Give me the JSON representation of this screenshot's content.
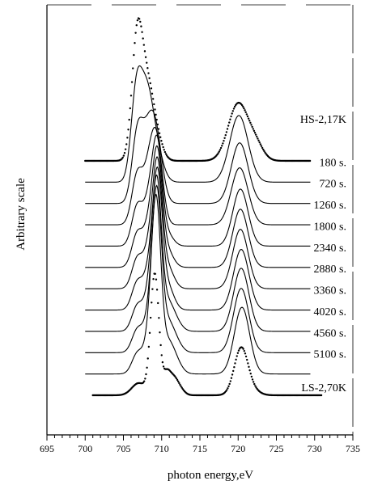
{
  "chart_data": {
    "type": "line",
    "title": "",
    "xlabel": "photon energy,eV",
    "ylabel": "Arbitrary scale",
    "xlim": [
      695,
      735
    ],
    "x_ticks": [
      695,
      700,
      705,
      710,
      715,
      720,
      725,
      730,
      735
    ],
    "x_minor_step": 1,
    "y_ticks_shown": false,
    "legend": "none",
    "grid": false,
    "line_color": "#000000",
    "series": [
      {
        "name": "HS-2,17K",
        "style": "dots",
        "x_range": [
          700,
          729.5
        ],
        "peaks": [
          {
            "x": 706.8,
            "height": 1.0,
            "width": 0.7
          },
          {
            "x": 708.1,
            "height": 0.55,
            "width": 0.8
          },
          {
            "x": 709.3,
            "height": 0.18,
            "width": 0.8
          },
          {
            "x": 720.0,
            "height": 0.47,
            "width": 1.3
          },
          {
            "x": 722.3,
            "height": 0.12,
            "width": 1.0
          }
        ]
      },
      {
        "name": "180 s.",
        "style": "line",
        "x_range": [
          700,
          729.5
        ],
        "peaks": [
          {
            "x": 706.7,
            "height": 0.72,
            "width": 0.7
          },
          {
            "x": 708.0,
            "height": 0.62,
            "width": 0.8
          },
          {
            "x": 709.2,
            "height": 0.28,
            "width": 0.9
          },
          {
            "x": 720.1,
            "height": 0.55,
            "width": 1.2
          }
        ]
      },
      {
        "name": "720 s.",
        "style": "line",
        "x_range": [
          700,
          729.5
        ],
        "peaks": [
          {
            "x": 706.8,
            "height": 0.52,
            "width": 0.7
          },
          {
            "x": 708.3,
            "height": 0.55,
            "width": 0.9
          },
          {
            "x": 709.4,
            "height": 0.38,
            "width": 0.8
          },
          {
            "x": 720.2,
            "height": 0.5,
            "width": 1.1
          }
        ]
      },
      {
        "name": "1260 s.",
        "style": "line",
        "x_range": [
          700,
          729.5
        ],
        "peaks": [
          {
            "x": 706.8,
            "height": 0.4,
            "width": 0.7
          },
          {
            "x": 708.5,
            "height": 0.5,
            "width": 0.8
          },
          {
            "x": 709.5,
            "height": 0.5,
            "width": 0.7
          },
          {
            "x": 720.2,
            "height": 0.47,
            "width": 1.1
          }
        ]
      },
      {
        "name": "1800 s.",
        "style": "line",
        "x_range": [
          700,
          729.5
        ],
        "peaks": [
          {
            "x": 706.8,
            "height": 0.32,
            "width": 0.7
          },
          {
            "x": 708.6,
            "height": 0.45,
            "width": 0.8
          },
          {
            "x": 709.5,
            "height": 0.62,
            "width": 0.6
          },
          {
            "x": 710.7,
            "height": 0.1,
            "width": 0.8
          },
          {
            "x": 720.3,
            "height": 0.47,
            "width": 1.0
          }
        ]
      },
      {
        "name": "2340 s.",
        "style": "line",
        "x_range": [
          700,
          729.5
        ],
        "peaks": [
          {
            "x": 706.8,
            "height": 0.27,
            "width": 0.7
          },
          {
            "x": 708.6,
            "height": 0.42,
            "width": 0.8
          },
          {
            "x": 709.5,
            "height": 0.72,
            "width": 0.6
          },
          {
            "x": 710.7,
            "height": 0.14,
            "width": 0.8
          },
          {
            "x": 720.3,
            "height": 0.48,
            "width": 1.0
          }
        ]
      },
      {
        "name": "2880 s.",
        "style": "line",
        "x_range": [
          700,
          729.5
        ],
        "peaks": [
          {
            "x": 706.8,
            "height": 0.24,
            "width": 0.7
          },
          {
            "x": 708.6,
            "height": 0.4,
            "width": 0.8
          },
          {
            "x": 709.5,
            "height": 0.82,
            "width": 0.6
          },
          {
            "x": 710.8,
            "height": 0.17,
            "width": 0.8
          },
          {
            "x": 720.3,
            "height": 0.49,
            "width": 1.0
          }
        ]
      },
      {
        "name": "3360 s.",
        "style": "line",
        "x_range": [
          700,
          729.5
        ],
        "peaks": [
          {
            "x": 706.8,
            "height": 0.22,
            "width": 0.7
          },
          {
            "x": 708.6,
            "height": 0.38,
            "width": 0.8
          },
          {
            "x": 709.5,
            "height": 0.92,
            "width": 0.6
          },
          {
            "x": 710.8,
            "height": 0.19,
            "width": 0.8
          },
          {
            "x": 720.4,
            "height": 0.5,
            "width": 1.0
          }
        ]
      },
      {
        "name": "4020 s.",
        "style": "line",
        "x_range": [
          700,
          729.5
        ],
        "peaks": [
          {
            "x": 706.8,
            "height": 0.2,
            "width": 0.7
          },
          {
            "x": 708.6,
            "height": 0.36,
            "width": 0.8
          },
          {
            "x": 709.4,
            "height": 1.02,
            "width": 0.6
          },
          {
            "x": 710.8,
            "height": 0.21,
            "width": 0.8
          },
          {
            "x": 711.9,
            "height": 0.06,
            "width": 0.8
          },
          {
            "x": 720.4,
            "height": 0.52,
            "width": 1.0
          }
        ]
      },
      {
        "name": "4560 s.",
        "style": "line",
        "x_range": [
          700,
          729.5
        ],
        "peaks": [
          {
            "x": 706.8,
            "height": 0.18,
            "width": 0.7
          },
          {
            "x": 708.6,
            "height": 0.34,
            "width": 0.8
          },
          {
            "x": 709.4,
            "height": 1.12,
            "width": 0.6
          },
          {
            "x": 710.8,
            "height": 0.22,
            "width": 0.8
          },
          {
            "x": 711.9,
            "height": 0.07,
            "width": 0.8
          },
          {
            "x": 720.4,
            "height": 0.53,
            "width": 1.0
          }
        ]
      },
      {
        "name": "5100 s.",
        "style": "line",
        "x_range": [
          700,
          729.5
        ],
        "peaks": [
          {
            "x": 706.8,
            "height": 0.16,
            "width": 0.7
          },
          {
            "x": 708.6,
            "height": 0.32,
            "width": 0.8
          },
          {
            "x": 709.3,
            "height": 1.22,
            "width": 0.6
          },
          {
            "x": 710.8,
            "height": 0.23,
            "width": 0.8
          },
          {
            "x": 711.9,
            "height": 0.08,
            "width": 0.8
          },
          {
            "x": 720.5,
            "height": 0.55,
            "width": 1.0
          }
        ]
      },
      {
        "name": "LS-2,70K",
        "style": "dots",
        "x_range": [
          701,
          731
        ],
        "peaks": [
          {
            "x": 707.0,
            "height": 0.1,
            "width": 0.9
          },
          {
            "x": 709.1,
            "height": 1.0,
            "width": 0.55
          },
          {
            "x": 710.7,
            "height": 0.18,
            "width": 0.5
          },
          {
            "x": 711.6,
            "height": 0.1,
            "width": 0.5
          },
          {
            "x": 712.3,
            "height": 0.06,
            "width": 0.6
          },
          {
            "x": 720.4,
            "height": 0.39,
            "width": 0.9
          },
          {
            "x": 722.0,
            "height": 0.03,
            "width": 0.9
          }
        ]
      }
    ]
  }
}
